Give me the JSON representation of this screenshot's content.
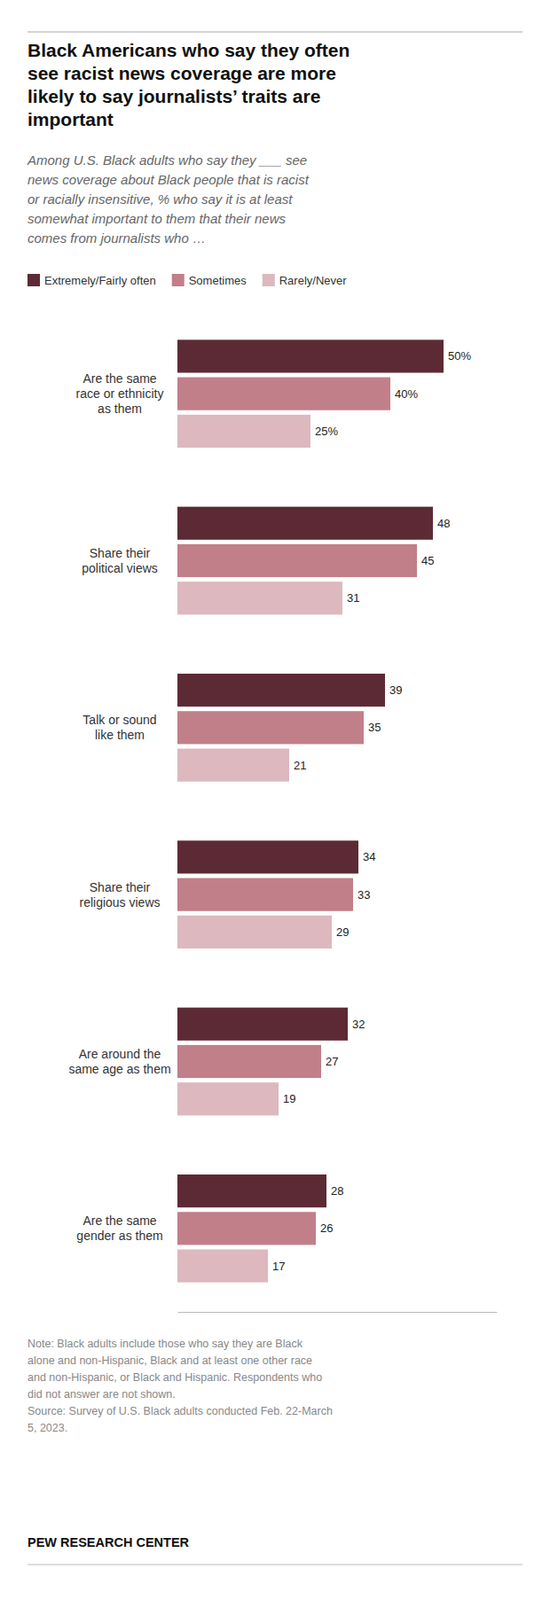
{
  "chart_data": {
    "type": "bar",
    "orientation": "horizontal",
    "title": "Black Americans who say they often\nsee racist news coverage are more\nlikely to say journalists’ traits are\nimportant",
    "subtitle": "Among U.S. Black adults who say they ___ see\nnews coverage about Black people that is racist\nor racially insensitive, % who say it is at least\nsomewhat important to them that their news\ncomes from journalists who …",
    "categories": [
      "Are the same\nrace or ethnicity\nas them",
      "Share their\npolitical views",
      "Talk or sound\nlike them",
      "Share their\nreligious views",
      "Are around the\nsame age as them",
      "Are the same\ngender as them"
    ],
    "series": [
      {
        "name": "Extremely/Fairly often",
        "color": "#5c2a35",
        "values": [
          50,
          48,
          39,
          34,
          32,
          28
        ],
        "value_labels": [
          "50%",
          "48",
          "39",
          "34",
          "32",
          "28"
        ]
      },
      {
        "name": "Sometimes",
        "color": "#c17f8a",
        "values": [
          40,
          45,
          35,
          33,
          27,
          26
        ],
        "value_labels": [
          "40%",
          "45",
          "35",
          "33",
          "27",
          "26"
        ]
      },
      {
        "name": "Rarely/Never",
        "color": "#ddb8bf",
        "values": [
          25,
          31,
          21,
          29,
          19,
          17
        ],
        "value_labels": [
          "25%",
          "31",
          "21",
          "29",
          "19",
          "17"
        ]
      }
    ],
    "xlim": [
      0,
      60
    ],
    "tick_labels": "y",
    "grid": false,
    "legend": "upper left",
    "data_labels": true,
    "note": "Note: Black adults include those who say they are Black\nalone and non-Hispanic, Black and at least one other race\nand non-Hispanic, or Black and Hispanic. Respondents who\ndid not answer are not shown.",
    "source": "Source: Survey of U.S. Black adults conducted Feb. 22-March\n5, 2023.",
    "footer": "PEW RESEARCH CENTER"
  }
}
